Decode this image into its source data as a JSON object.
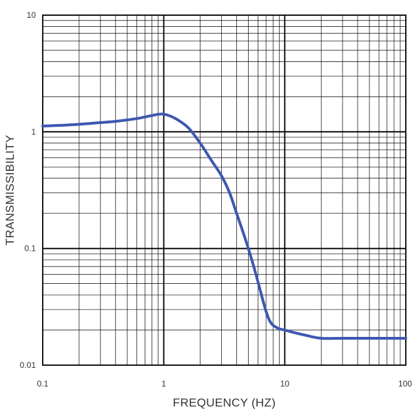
{
  "chart_data": {
    "type": "line",
    "title": "",
    "xlabel": "FREQUENCY (HZ)",
    "ylabel": "TRANSMISSIBILITY",
    "x_scale": "log",
    "y_scale": "log",
    "xlim": [
      0.1,
      100
    ],
    "ylim": [
      0.01,
      10
    ],
    "x_ticks": [
      "0.1",
      "1",
      "10",
      "100"
    ],
    "y_ticks": [
      "10",
      "1",
      "0.1",
      "0.01"
    ],
    "grid": true,
    "legend": "none",
    "series": [
      {
        "color": "#3e58b0",
        "x": [
          0.1,
          0.15,
          0.2,
          0.3,
          0.4,
          0.6,
          0.8,
          0.95,
          1.1,
          1.3,
          1.6,
          2.0,
          2.5,
          3.0,
          3.5,
          4.0,
          4.5,
          5.0,
          5.5,
          6.0,
          6.5,
          7.0,
          7.5,
          8.0,
          9.0,
          10,
          12,
          15,
          20,
          30,
          50,
          100
        ],
        "y": [
          1.12,
          1.14,
          1.16,
          1.2,
          1.23,
          1.3,
          1.38,
          1.42,
          1.38,
          1.27,
          1.08,
          0.8,
          0.56,
          0.42,
          0.3,
          0.2,
          0.14,
          0.1,
          0.072,
          0.052,
          0.038,
          0.029,
          0.024,
          0.022,
          0.0205,
          0.02,
          0.019,
          0.018,
          0.017,
          0.017,
          0.017,
          0.017
        ]
      }
    ]
  }
}
